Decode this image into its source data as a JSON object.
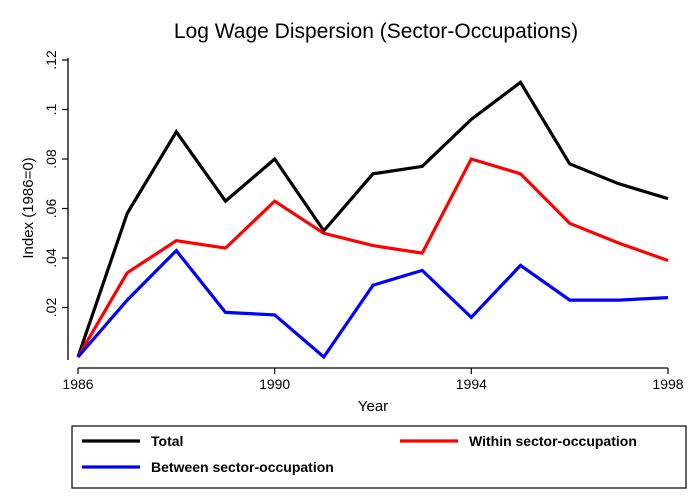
{
  "chart_data": {
    "type": "line",
    "title": "Log Wage Dispersion (Sector-Occupations)",
    "xlabel": "Year",
    "ylabel": "Index (1986=0)",
    "x": [
      1986,
      1987,
      1988,
      1989,
      1990,
      1991,
      1992,
      1993,
      1994,
      1995,
      1996,
      1997,
      1998
    ],
    "xlim": [
      1986,
      1998
    ],
    "ylim": [
      0,
      0.12
    ],
    "x_ticks": [
      "1986",
      "1990",
      "1994",
      "1998"
    ],
    "y_ticks": [
      ".02",
      ".04",
      ".06",
      ".08",
      ".1",
      ".12"
    ],
    "grid": false,
    "legend_position": "bottom",
    "series": [
      {
        "name": "Total",
        "color": "#000000",
        "values": [
          0.0,
          0.058,
          0.091,
          0.063,
          0.08,
          0.051,
          0.074,
          0.077,
          0.096,
          0.111,
          0.078,
          0.07,
          0.064
        ]
      },
      {
        "name": "Within sector-occupation",
        "color": "#ff0000",
        "values": [
          0.0,
          0.034,
          0.047,
          0.044,
          0.063,
          0.05,
          0.045,
          0.042,
          0.08,
          0.074,
          0.054,
          0.046,
          0.039
        ]
      },
      {
        "name": "Between sector-occupation",
        "color": "#0000ff",
        "values": [
          0.0,
          0.023,
          0.043,
          0.018,
          0.017,
          0.0,
          0.029,
          0.035,
          0.016,
          0.037,
          0.023,
          0.023,
          0.024
        ]
      }
    ]
  }
}
